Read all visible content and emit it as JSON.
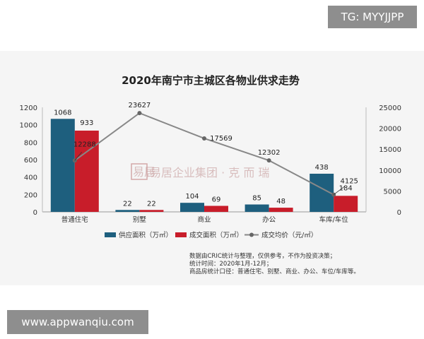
{
  "header": {
    "tg_badge": "TG: MYYJJPP"
  },
  "footer": {
    "url_badge": "www.appwanqiu.com"
  },
  "watermark": {
    "text": "易居企业集团 · 克 而 瑞",
    "logo_text": "易居"
  },
  "notes": [
    "数据由CRIC统计与整理，仅供参考，不作为投资决策；",
    "统计时间：2020年1月-12月；",
    "商品房统计口径：普通住宅、别墅、商业、办公、车位/车库等。"
  ],
  "colors": {
    "supply": "#1e5f7e",
    "deal": "#c81d2a",
    "price": "#888888"
  },
  "chart_data": {
    "type": "bar",
    "title": "2020年南宁市主城区各物业供求走势",
    "categories": [
      "普通住宅",
      "别墅",
      "商业",
      "办公",
      "车库/车位"
    ],
    "series": [
      {
        "name": "供应面积（万㎡）",
        "type": "bar",
        "axis": "left",
        "values": [
          1068,
          22,
          104,
          85,
          438
        ]
      },
      {
        "name": "成交面积（万㎡）",
        "type": "bar",
        "axis": "left",
        "values": [
          933,
          22,
          69,
          48,
          184
        ]
      },
      {
        "name": "成交均价（元/㎡）",
        "type": "line",
        "axis": "right",
        "values": [
          12288,
          23627,
          17569,
          12302,
          4125
        ]
      }
    ],
    "y_left": {
      "min": 0,
      "max": 1200,
      "ticks": [
        "0",
        "200",
        "400",
        "600",
        "800",
        "1000",
        "1200"
      ]
    },
    "y_right": {
      "min": 0,
      "max": 25000,
      "ticks": [
        "0",
        "5000",
        "10000",
        "15000",
        "20000",
        "25000"
      ]
    },
    "legend_position": "bottom",
    "grid": false
  }
}
